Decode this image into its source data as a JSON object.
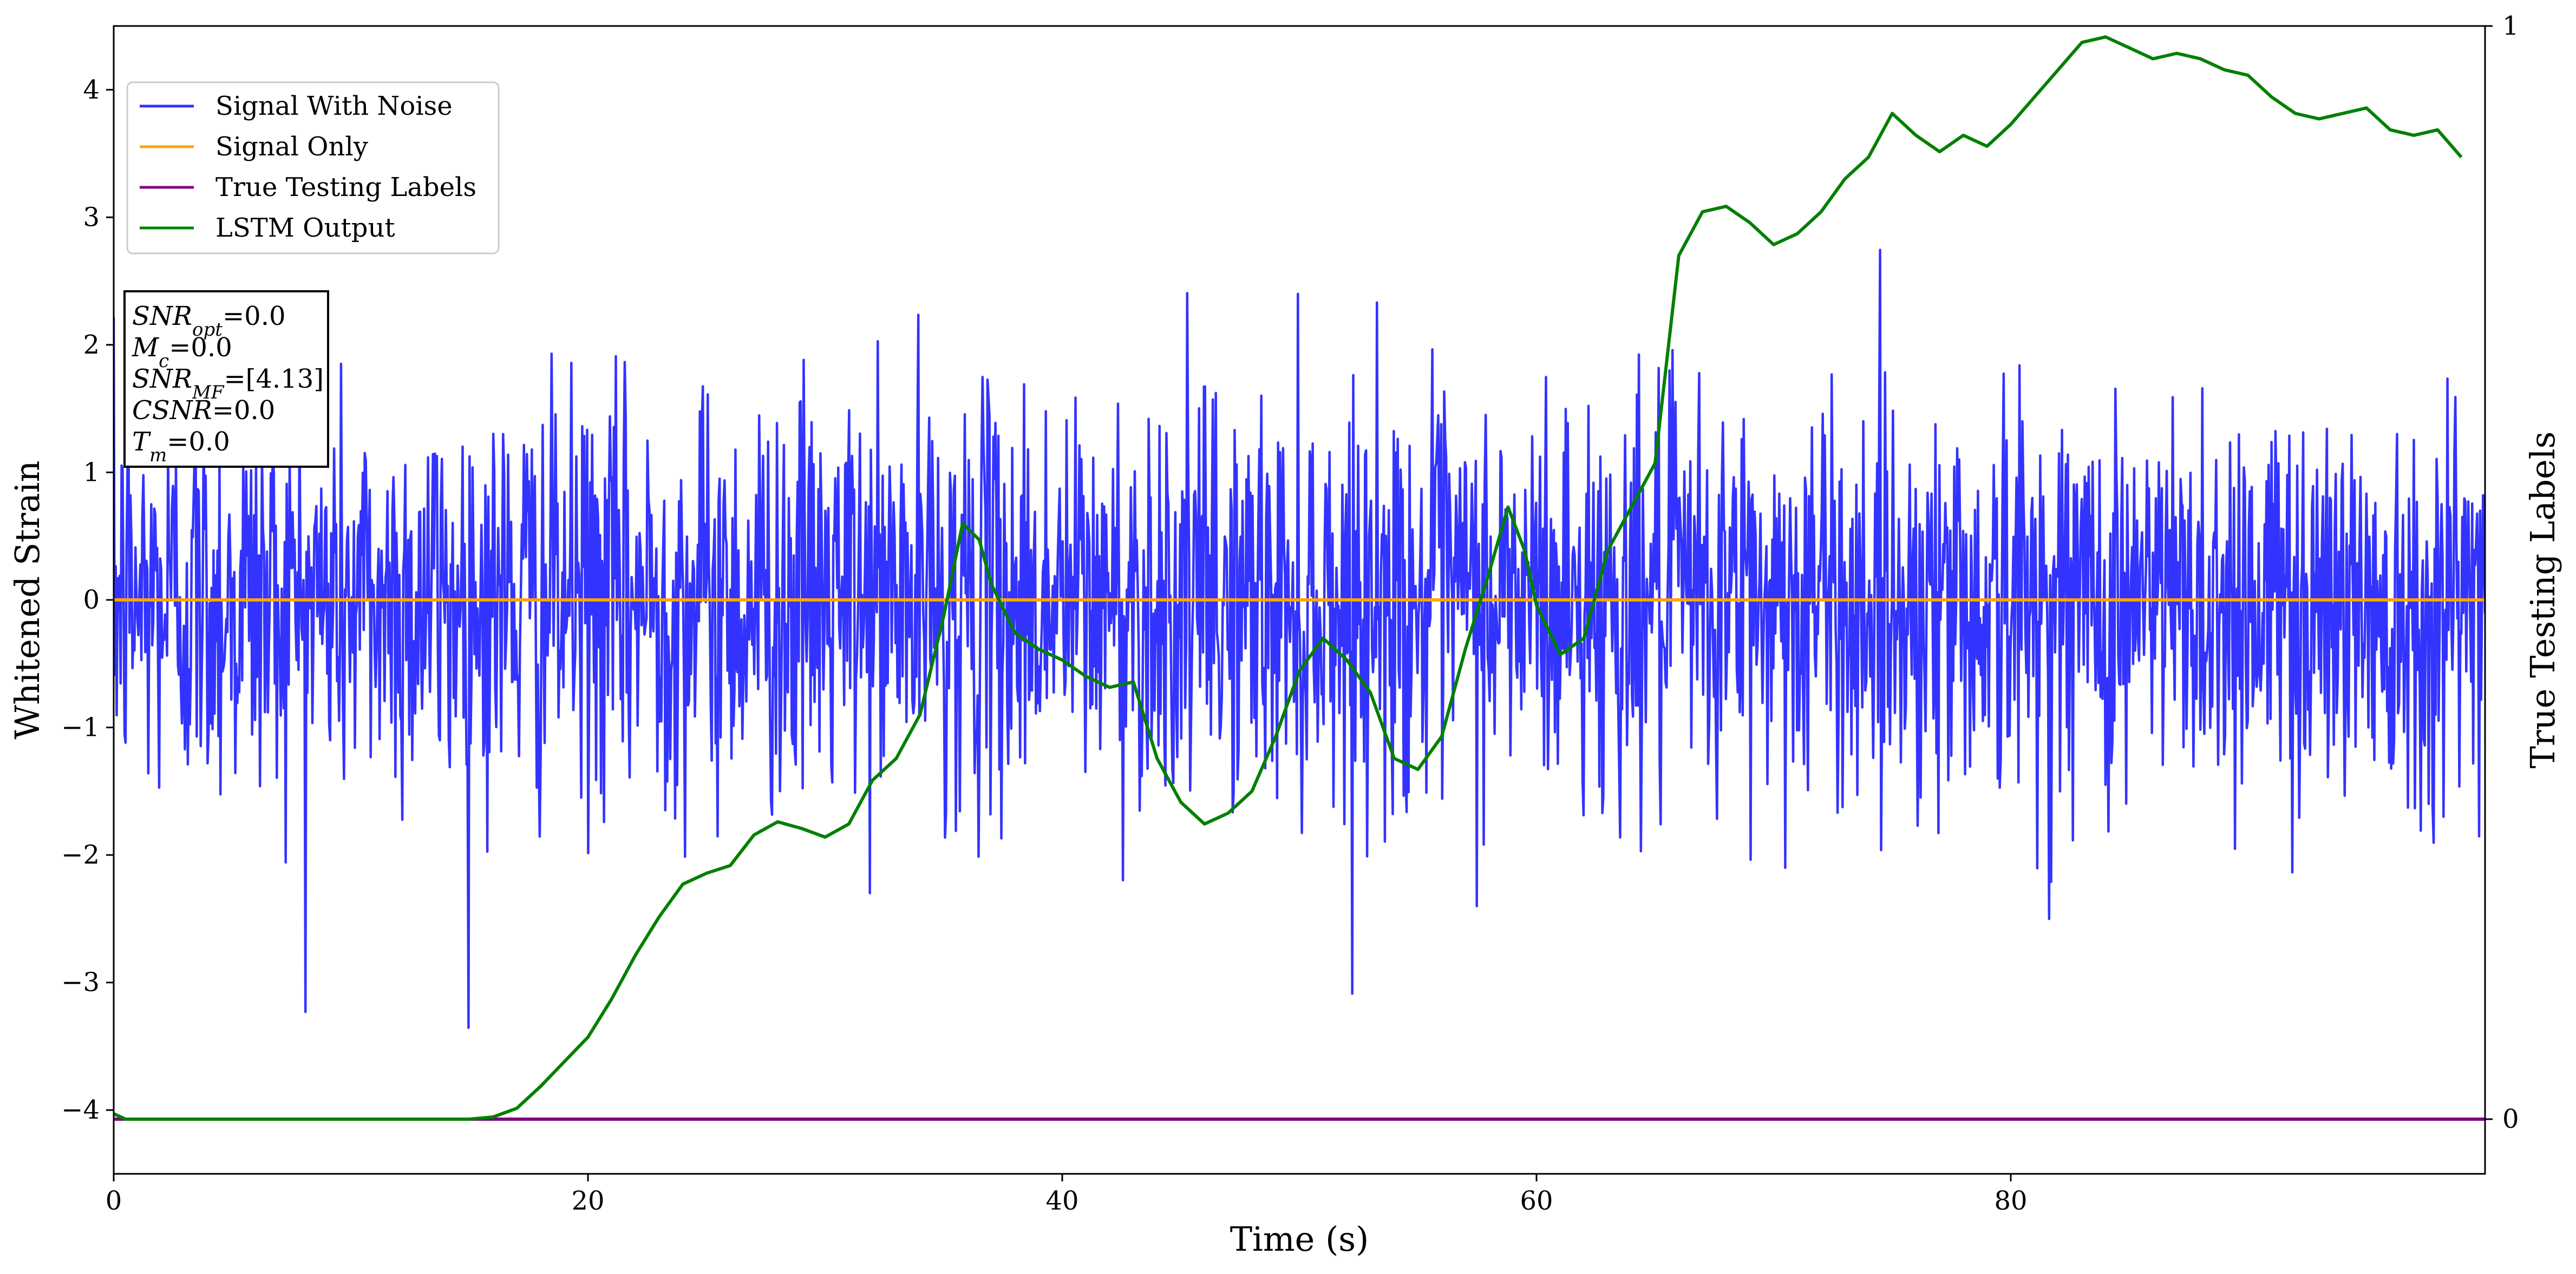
{
  "chart_data": {
    "type": "line",
    "title": "",
    "xlabel": "Time (s)",
    "ylabel": "Whitened Strain",
    "ylabel_right": "True Testing Labels",
    "xlim": [
      0,
      100
    ],
    "ylim": [
      -4.5,
      4.5
    ],
    "ylim_right": [
      -0.05,
      1.0
    ],
    "x_ticks": [
      0,
      20,
      40,
      60,
      80
    ],
    "x_tick_labels": [
      "0",
      "20",
      "40",
      "60",
      "80"
    ],
    "y_ticks": [
      -4,
      -3,
      -2,
      -1,
      0,
      1,
      2,
      3,
      4
    ],
    "y_tick_labels": [
      "−4",
      "−3",
      "−2",
      "−1",
      "0",
      "1",
      "2",
      "3",
      "4"
    ],
    "y_right_ticks": [
      0,
      1
    ],
    "y_right_tick_labels": [
      "0",
      "1"
    ],
    "grid": false,
    "legend": "upper-left",
    "colors": {
      "signal_with_noise": "#3333ff",
      "signal_only": "#ffa500",
      "true_labels": "#800080",
      "lstm_output": "#008000"
    },
    "noise": {
      "std": 0.8,
      "samples": 2400,
      "seed": 12345
    },
    "series": [
      {
        "name": "Signal With Noise",
        "axis": "left",
        "note_type": "noise"
      },
      {
        "name": "Signal Only",
        "axis": "left",
        "x": [
          0,
          100
        ],
        "y": [
          0,
          0
        ]
      },
      {
        "name": "True Testing Labels",
        "axis": "right",
        "x": [
          0,
          100
        ],
        "y": [
          0,
          0
        ]
      },
      {
        "name": "LSTM Output",
        "axis": "right",
        "x": [
          0,
          0.5,
          5,
          10,
          15,
          16,
          17,
          18,
          20,
          21,
          22,
          23,
          24,
          25,
          26,
          27,
          28,
          29,
          30,
          31,
          32,
          33,
          34,
          35,
          35.8,
          36.5,
          37,
          38,
          39,
          40,
          41,
          42,
          43,
          44,
          45,
          46,
          47,
          48,
          49,
          50,
          51,
          52,
          53,
          54,
          55,
          56,
          57,
          58,
          58.8,
          59.5,
          60,
          61,
          62,
          63,
          64,
          65,
          66,
          67,
          68,
          69,
          70,
          71,
          72,
          73,
          74,
          75,
          76,
          77,
          78,
          79,
          80,
          81,
          82,
          83,
          84,
          85,
          86,
          87,
          88,
          89,
          90,
          91,
          92,
          93,
          94,
          95,
          96,
          97,
          98,
          99
        ],
        "y": [
          0.005,
          0.0,
          0.0,
          0.0,
          0.0,
          0.002,
          0.01,
          0.03,
          0.075,
          0.11,
          0.15,
          0.185,
          0.215,
          0.225,
          0.232,
          0.26,
          0.272,
          0.266,
          0.258,
          0.27,
          0.31,
          0.33,
          0.37,
          0.46,
          0.545,
          0.53,
          0.49,
          0.445,
          0.43,
          0.42,
          0.405,
          0.395,
          0.4,
          0.33,
          0.29,
          0.27,
          0.28,
          0.3,
          0.35,
          0.41,
          0.44,
          0.42,
          0.39,
          0.33,
          0.32,
          0.35,
          0.43,
          0.5,
          0.56,
          0.52,
          0.47,
          0.425,
          0.44,
          0.52,
          0.56,
          0.6,
          0.79,
          0.83,
          0.835,
          0.82,
          0.8,
          0.81,
          0.83,
          0.86,
          0.88,
          0.92,
          0.9,
          0.885,
          0.9,
          0.89,
          0.91,
          0.935,
          0.96,
          0.985,
          0.99,
          0.98,
          0.97,
          0.975,
          0.97,
          0.96,
          0.955,
          0.935,
          0.92,
          0.915,
          0.92,
          0.925,
          0.905,
          0.9,
          0.905,
          0.88
        ]
      }
    ]
  },
  "legend": {
    "items": [
      {
        "label": "Signal With Noise"
      },
      {
        "label": "Signal Only"
      },
      {
        "label": "True Testing Labels"
      },
      {
        "label": "LSTM Output"
      }
    ]
  },
  "infobox": {
    "snr_opt": {
      "sym": "SNR",
      "sub": "opt",
      "value": "=0.0"
    },
    "mc": {
      "sym": "M",
      "sub": "c",
      "value": "=0.0"
    },
    "snr_mf": {
      "sym": "SNR",
      "sub": "MF",
      "value": "=[4.13]"
    },
    "csnr": {
      "sym": "CSNR",
      "value": "=0.0"
    },
    "tm": {
      "sym": "T",
      "sub": "m",
      "value": "=0.0"
    }
  }
}
